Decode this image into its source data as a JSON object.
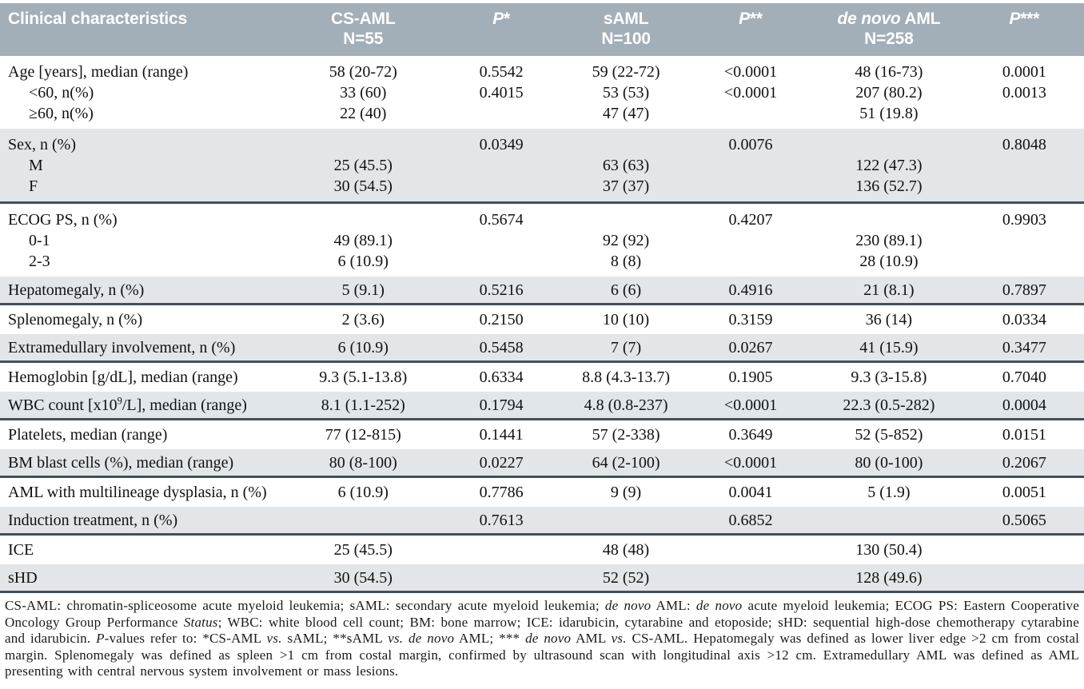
{
  "colors": {
    "header_bg": "#a3afb8",
    "shade_bg": "#e2e6e8",
    "separator": "#43505a",
    "header_text": "#ffffff",
    "body_text": "#111111"
  },
  "table": {
    "header": {
      "label": "Clinical characteristics",
      "columns": [
        {
          "id": "cs-aml",
          "parts": [
            {
              "t": "CS-AML"
            }
          ],
          "sub": "N=55"
        },
        {
          "id": "p-star",
          "parts": [
            {
              "t": "P",
              "i": true
            },
            {
              "t": "*"
            }
          ],
          "sub": ""
        },
        {
          "id": "saml",
          "parts": [
            {
              "t": "sAML"
            }
          ],
          "sub": "N=100"
        },
        {
          "id": "p-2stars",
          "parts": [
            {
              "t": "P",
              "i": true
            },
            {
              "t": "**"
            }
          ],
          "sub": ""
        },
        {
          "id": "de-novo-aml",
          "parts": [
            {
              "t": "de novo",
              "i": true
            },
            {
              "t": " AML"
            }
          ],
          "sub": "N=258"
        },
        {
          "id": "p-3stars",
          "parts": [
            {
              "t": "P",
              "i": true
            },
            {
              "t": "***"
            }
          ],
          "sub": ""
        }
      ]
    },
    "rows": [
      {
        "label": "Age [years], median (range)",
        "group": "start",
        "values": [
          "58 (20-72)",
          "0.5542",
          "59 (22-72)",
          "<0.0001",
          "48 (16-73)",
          "0.0001"
        ]
      },
      {
        "label": "<60, n(%)",
        "indent": true,
        "group": "mid",
        "values": [
          "33 (60)",
          "0.4015",
          "53 (53)",
          "<0.0001",
          "207 (80.2)",
          "0.0013"
        ]
      },
      {
        "label": "≥60, n(%)",
        "indent": true,
        "group": "end",
        "values": [
          "22 (40)",
          "",
          "47 (47)",
          "",
          "51 (19.8)",
          ""
        ]
      },
      {
        "label": "Sex, n (%)",
        "shade": true,
        "group": "start",
        "values": [
          "",
          "0.0349",
          "",
          "0.0076",
          "",
          "0.8048"
        ]
      },
      {
        "label": "M",
        "indent": true,
        "shade": true,
        "group": "mid",
        "values": [
          "25 (45.5)",
          "",
          "63 (63)",
          "",
          "122 (47.3)",
          ""
        ]
      },
      {
        "label": "F",
        "indent": true,
        "shade": true,
        "group": "end",
        "sep": true,
        "values": [
          "30 (54.5)",
          "",
          "37 (37)",
          "",
          "136 (52.7)",
          ""
        ]
      },
      {
        "label": "ECOG PS, n (%)",
        "group": "start",
        "values": [
          "",
          "0.5674",
          "",
          "0.4207",
          "",
          "0.9903"
        ]
      },
      {
        "label": "0-1",
        "indent": true,
        "group": "mid",
        "values": [
          "49 (89.1)",
          "",
          "92 (92)",
          "",
          "230 (89.1)",
          ""
        ]
      },
      {
        "label": "2-3",
        "indent": true,
        "group": "end",
        "values": [
          "6 (10.9)",
          "",
          "8 (8)",
          "",
          "28 (10.9)",
          ""
        ]
      },
      {
        "label": "Hepatomegaly, n (%)",
        "shade": true,
        "sep": true,
        "values": [
          "5 (9.1)",
          "0.5216",
          "6 (6)",
          "0.4916",
          "21 (8.1)",
          "0.7897"
        ]
      },
      {
        "label": "Splenomegaly, n (%)",
        "values": [
          "2 (3.6)",
          "0.2150",
          "10 (10)",
          "0.3159",
          "36 (14)",
          "0.0334"
        ]
      },
      {
        "label": "Extramedullary involvement, n (%)",
        "shade": true,
        "sep": true,
        "values": [
          "6 (10.9)",
          "0.5458",
          "7 (7)",
          "0.0267",
          "41 (15.9)",
          "0.3477"
        ]
      },
      {
        "label": "Hemoglobin [g/dL], median (range)",
        "values": [
          "9.3 (5.1-13.8)",
          "0.6334",
          "8.8 (4.3-13.7)",
          "0.1905",
          "9.3 (3-15.8)",
          "0.7040"
        ]
      },
      {
        "label_parts": [
          {
            "t": "WBC count [x10"
          },
          {
            "t": "9",
            "sup": true
          },
          {
            "t": "/L], median (range)"
          }
        ],
        "shade": true,
        "sep": true,
        "values": [
          "8.1 (1.1-252)",
          "0.1794",
          "4.8 (0.8-237)",
          "<0.0001",
          "22.3 (0.5-282)",
          "0.0004"
        ]
      },
      {
        "label": "Platelets, median (range)",
        "values": [
          "77 (12-815)",
          "0.1441",
          "57 (2-338)",
          "0.3649",
          "52 (5-852)",
          "0.0151"
        ]
      },
      {
        "label": "BM blast cells (%), median (range)",
        "shade": true,
        "sep": true,
        "values": [
          "80 (8-100)",
          "0.0227",
          "64 (2-100)",
          "<0.0001",
          "80 (0-100)",
          "0.2067"
        ]
      },
      {
        "label": "AML with multilineage dysplasia, n (%)",
        "values": [
          "6 (10.9)",
          "0.7786",
          "9 (9)",
          "0.0041",
          "5 (1.9)",
          "0.0051"
        ]
      },
      {
        "label": "Induction treatment, n (%)",
        "shade": true,
        "sep": true,
        "values": [
          "",
          "0.7613",
          "",
          "0.6852",
          "",
          "0.5065"
        ]
      },
      {
        "label": "ICE",
        "values": [
          "25 (45.5)",
          "",
          "48 (48)",
          "",
          "130 (50.4)",
          ""
        ]
      },
      {
        "label": "sHD",
        "shade": true,
        "sep": true,
        "values": [
          "30 (54.5)",
          "",
          "52 (52)",
          "",
          "128 (49.6)",
          ""
        ]
      }
    ]
  },
  "footnote": {
    "segments": [
      {
        "t": "CS-AML: chromatin-spliceosome acute myeloid leukemia; sAML: secondary acute myeloid leukemia; "
      },
      {
        "t": "de novo",
        "i": true
      },
      {
        "t": " AML: "
      },
      {
        "t": "de novo",
        "i": true
      },
      {
        "t": " acute myeloid leukemia; ECOG PS: Eastern Cooperative Oncology Group Performance "
      },
      {
        "t": "Status",
        "i": true
      },
      {
        "t": "; WBC: white blood cell count; BM: bone marrow; ICE: idarubicin, cytarabine and etoposide; sHD: sequential high-dose chemotherapy cytarabine and idarubicin. "
      },
      {
        "t": "P",
        "i": true
      },
      {
        "t": "-values refer to: *CS-AML "
      },
      {
        "t": "vs.",
        "i": true
      },
      {
        "t": " sAML; **sAML "
      },
      {
        "t": "vs. de novo",
        "i": true
      },
      {
        "t": " AML; *** "
      },
      {
        "t": "de novo",
        "i": true
      },
      {
        "t": " AML "
      },
      {
        "t": "vs.",
        "i": true
      },
      {
        "t": " CS-AML. Hepatomegaly was defined as lower liver edge >2 cm from costal margin. Splenomegaly was defined as spleen >1 cm from costal margin, confirmed by ultrasound scan with longitudinal axis >12 cm. Extramedullary AML was defined as AML presenting with central nervous system involvement or mass lesions."
      }
    ]
  }
}
